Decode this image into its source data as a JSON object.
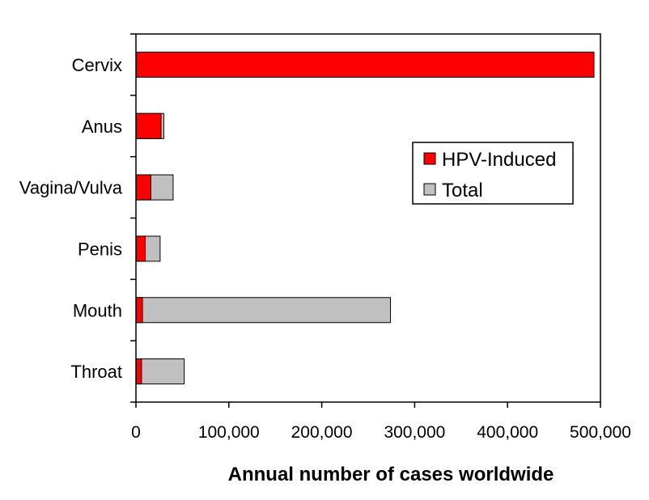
{
  "chart_data": {
    "type": "bar",
    "orientation": "horizontal",
    "stacking": "overlay",
    "categories": [
      "Cervix",
      "Anus",
      "Vagina/Vulva",
      "Penis",
      "Mouth",
      "Throat"
    ],
    "series": [
      {
        "name": "HPV-Induced",
        "values": [
          493000,
          27000,
          16000,
          10000,
          7000,
          6000
        ],
        "color": "#ff0000"
      },
      {
        "name": "Total",
        "values": [
          493000,
          30000,
          40000,
          26000,
          274000,
          52000
        ],
        "color": "#c0c0c0"
      }
    ],
    "xlabel": "Annual number of cases worldwide",
    "ylabel": "",
    "xlim": [
      0,
      500000
    ],
    "xticks": [
      0,
      100000,
      200000,
      300000,
      400000,
      500000
    ],
    "xtick_labels": [
      "0",
      "100,000",
      "200,000",
      "300,000",
      "400,000",
      "500,000"
    ],
    "grid": false,
    "legend": {
      "position": "right",
      "entries": [
        "HPV-Induced",
        "Total"
      ]
    },
    "colors": {
      "hpv": "#ff0000",
      "total": "#c0c0c0",
      "outline": "#000000",
      "frame": "#000000"
    }
  }
}
